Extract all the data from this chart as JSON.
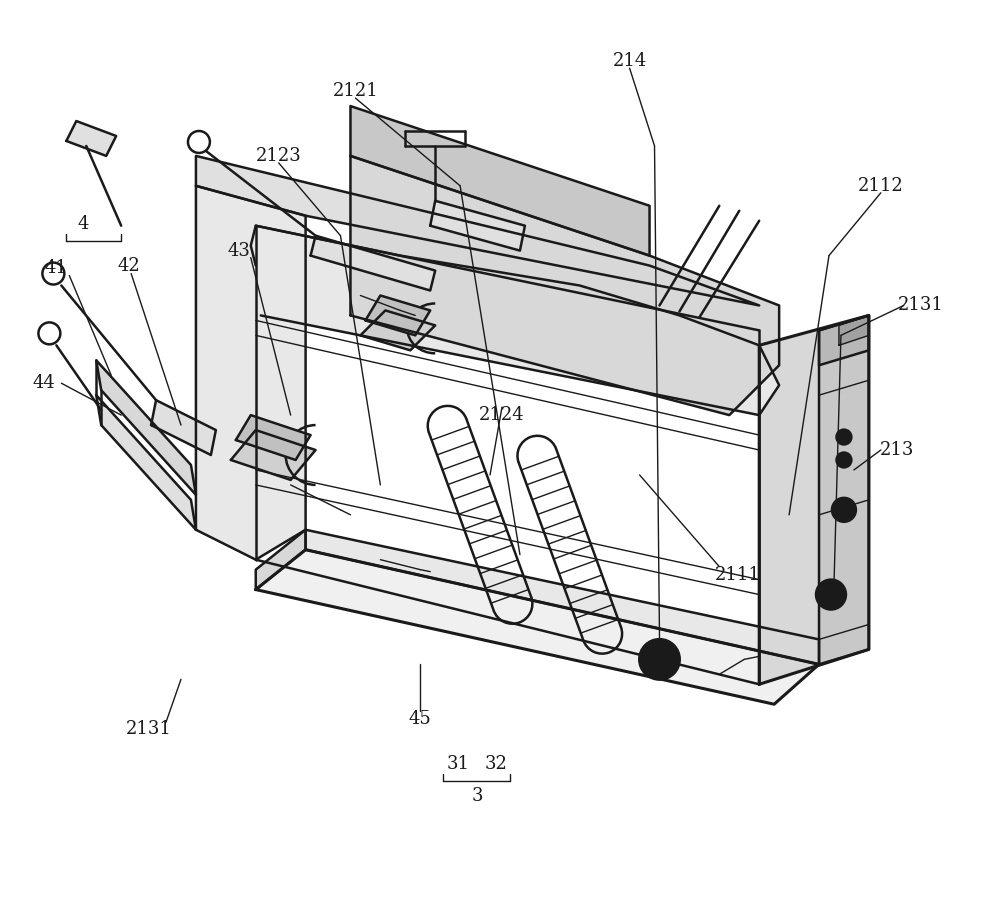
{
  "bg_color": "#ffffff",
  "line_color": "#1a1a1a",
  "lw_main": 1.8,
  "lw_thin": 1.0,
  "lw_thick": 2.2,
  "figsize": [
    10.0,
    9.05
  ],
  "dpi": 100,
  "font_size": 13,
  "gray_fill": "#d0d0d0",
  "light_gray": "#e8e8e8"
}
